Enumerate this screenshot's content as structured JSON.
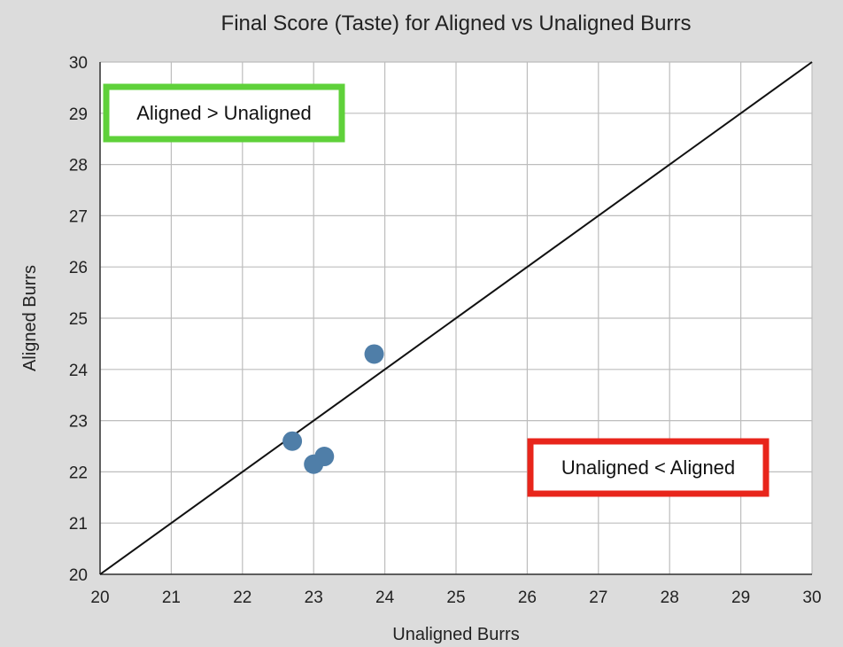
{
  "chart_data": {
    "type": "scatter",
    "title": "Final Score (Taste) for Aligned vs Unaligned Burrs",
    "xlabel": "Unaligned Burrs",
    "ylabel": "Aligned Burrs",
    "xlim": [
      20,
      30
    ],
    "ylim": [
      20,
      30
    ],
    "xticks": [
      "20",
      "21",
      "22",
      "23",
      "24",
      "25",
      "26",
      "27",
      "28",
      "29",
      "30"
    ],
    "yticks": [
      "20",
      "21",
      "22",
      "23",
      "24",
      "25",
      "26",
      "27",
      "28",
      "29",
      "30"
    ],
    "grid": true,
    "series": [
      {
        "points": [
          {
            "x": 22.7,
            "y": 22.6
          },
          {
            "x": 23.0,
            "y": 22.15
          },
          {
            "x": 23.15,
            "y": 22.3
          },
          {
            "x": 23.85,
            "y": 24.3
          }
        ]
      }
    ],
    "reference_line": {
      "from": [
        20,
        20
      ],
      "to": [
        30,
        30
      ]
    },
    "annotations": [
      {
        "text": "Aligned > Unaligned",
        "border_color": "#5fd13a",
        "placement": "top-left"
      },
      {
        "text": "Unaligned < Aligned",
        "border_color": "#e8251b",
        "placement": "bottom-right"
      }
    ],
    "colors": {
      "marker": "#4f7ea8",
      "plot_background": "#ffffff",
      "page_background": "#dcdcdc",
      "grid": "#bdbdbd"
    }
  }
}
